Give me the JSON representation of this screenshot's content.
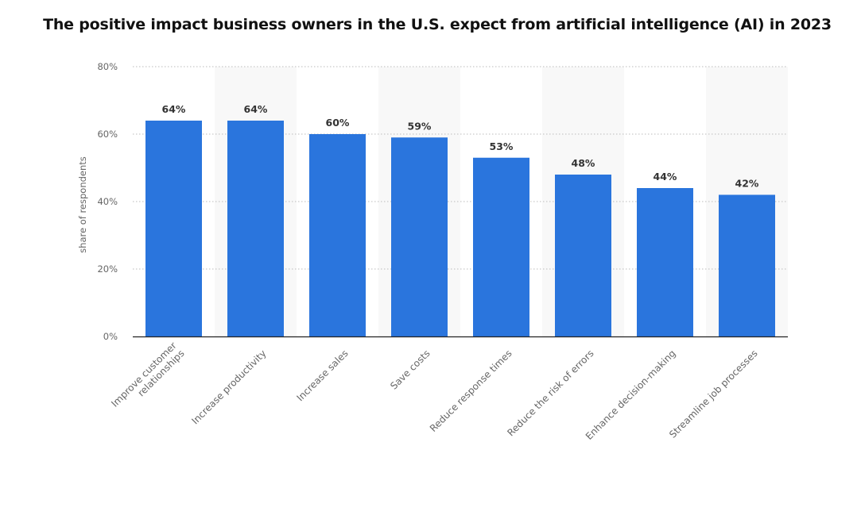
{
  "chart_data": {
    "type": "bar",
    "title": "The positive impact business owners in the U.S. expect from artificial intelligence (AI) in 2023",
    "xlabel": "",
    "ylabel": "share of respondents",
    "categories": [
      [
        "Improve customer",
        "relationships"
      ],
      [
        "Increase productivity"
      ],
      [
        "Increase sales"
      ],
      [
        "Save costs"
      ],
      [
        "Reduce response times"
      ],
      [
        "Reduce the risk of errors"
      ],
      [
        "Enhance decision-making"
      ],
      [
        "Streamline job processes"
      ]
    ],
    "values": [
      64,
      64,
      60,
      59,
      53,
      48,
      44,
      42
    ],
    "value_labels": [
      "64%",
      "64%",
      "60%",
      "59%",
      "53%",
      "48%",
      "44%",
      "42%"
    ],
    "ylim": [
      0,
      80
    ],
    "yticks": [
      0,
      20,
      40,
      60,
      80
    ],
    "ytick_labels": [
      "0%",
      "20%",
      "40%",
      "60%",
      "80%"
    ],
    "grid": true,
    "legend": "none",
    "bar_color": "#2a75dd",
    "band_color": "#f8f8f8",
    "grid_color": "#bbbbbb",
    "axis_color": "#222222"
  }
}
